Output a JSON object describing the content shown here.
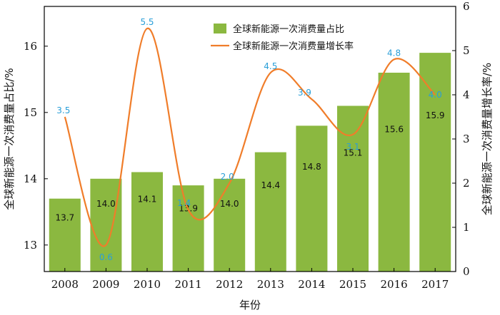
{
  "chart_data": {
    "type": "bar",
    "categories": [
      "2008",
      "2009",
      "2010",
      "2011",
      "2012",
      "2013",
      "2014",
      "2015",
      "2016",
      "2017"
    ],
    "series": [
      {
        "name": "全球新能源一次消费量占比",
        "type": "bar",
        "axis": "left",
        "values": [
          13.7,
          14.0,
          14.1,
          13.9,
          14.0,
          14.4,
          14.8,
          15.1,
          15.6,
          15.9
        ],
        "labels": [
          "13.7",
          "14.0",
          "14.1",
          "13.9",
          "14.0",
          "14.4",
          "14.8",
          "15.1",
          "15.6",
          "15.9"
        ],
        "color": "#8bb840"
      },
      {
        "name": "全球新能源一次消费量增长率",
        "type": "line",
        "axis": "right",
        "values": [
          3.5,
          0.6,
          5.5,
          1.4,
          2.0,
          4.5,
          3.9,
          3.1,
          4.8,
          4.0
        ],
        "labels": [
          "3.5",
          "0.6",
          "5.5",
          "1.4",
          "2.0",
          "4.5",
          "3.9",
          "3.1",
          "4.8",
          "4.0"
        ],
        "color": "#f07d2a",
        "label_color": "#2a9fd8"
      }
    ],
    "xlabel": "年份",
    "ylabel": "全球新能源一次消费量占比/%",
    "y2label": "全球新能源一次消费量增长率/%",
    "ylim": [
      12.6,
      16.6
    ],
    "yticks": [
      "13",
      "14",
      "15",
      "16"
    ],
    "y2lim": [
      0,
      6
    ],
    "y2ticks": [
      "0",
      "1",
      "2",
      "3",
      "4",
      "5",
      "6"
    ],
    "legend": "top-center",
    "grid": false
  }
}
